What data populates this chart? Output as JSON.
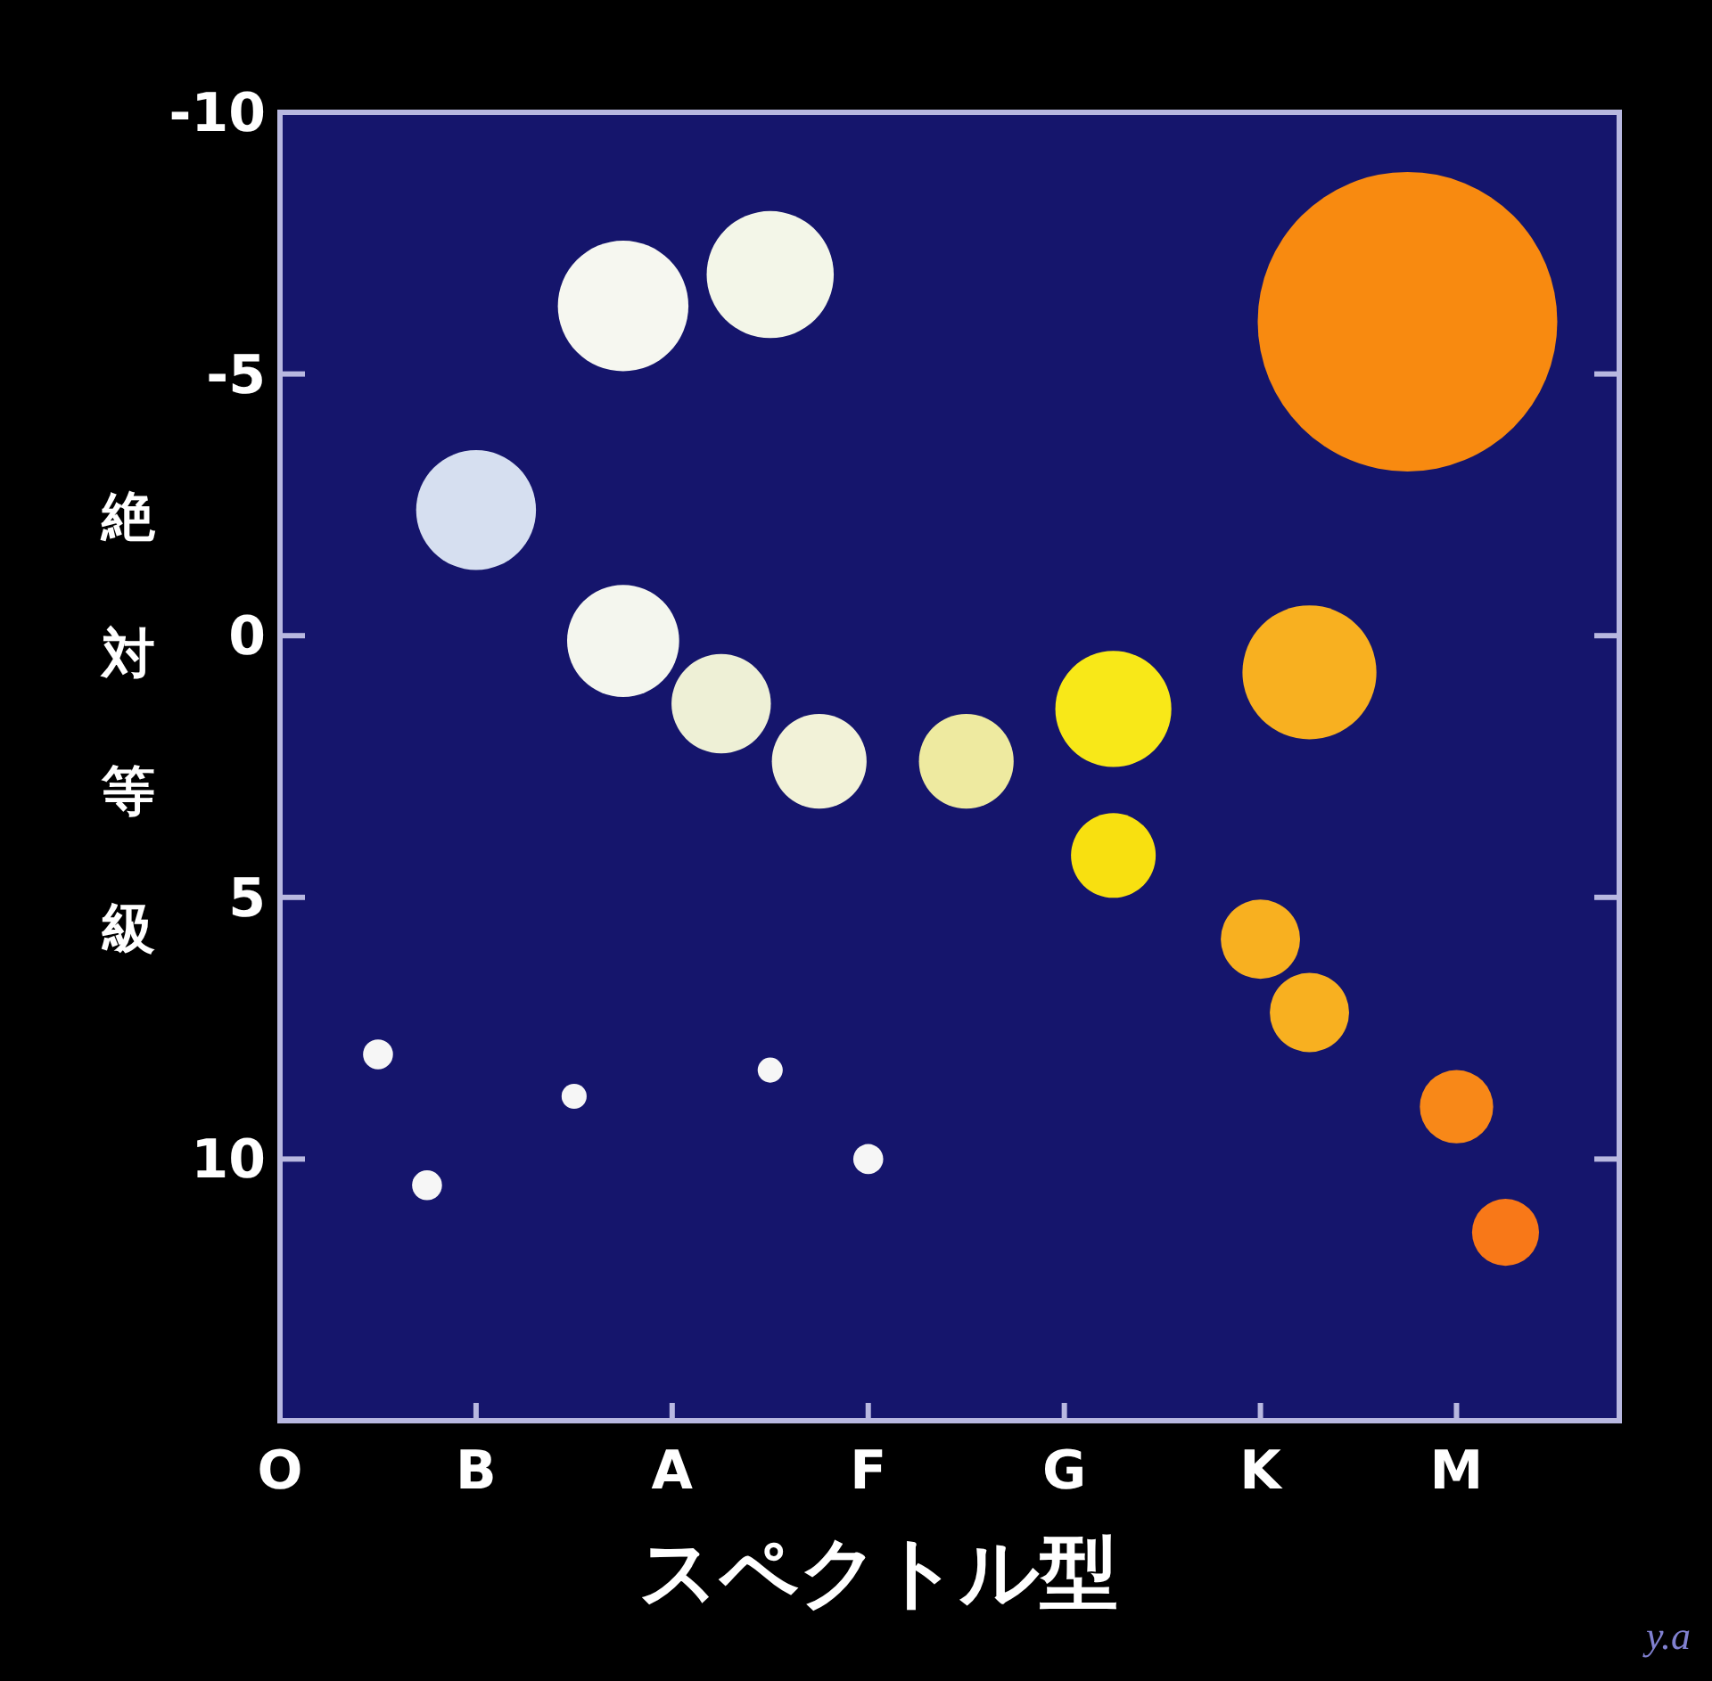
{
  "chart_data": {
    "type": "bubble",
    "xlabel": "スペクトル型",
    "ylabel": "絶対等級",
    "categories": [
      "O",
      null,
      null,
      null,
      "B",
      null,
      null,
      null,
      "A",
      null,
      null,
      null,
      "F",
      null,
      null,
      null,
      "G",
      null,
      null,
      null,
      "K",
      null,
      null,
      null,
      "M",
      null,
      null,
      null
    ],
    "ylim": [
      15,
      -10
    ],
    "yticks": [
      -10,
      -5,
      0,
      5,
      10
    ],
    "series": [
      {
        "values": [
          null,
          null,
          8.0,
          10.5,
          -2.4,
          null,
          8.8,
          -6.3,
          null,
          1.3,
          -6.9,
          2.4,
          10.0,
          null,
          2.4,
          null,
          null,
          1.4,
          null,
          null,
          5.8,
          0.7,
          null,
          -6.0,
          9.0,
          11.4,
          null,
          null
        ],
        "sizes": [
          null,
          null,
          0.01,
          0.01,
          0.16,
          null,
          0.007,
          0.19,
          null,
          0.11,
          0.18,
          0.1,
          0.01,
          null,
          0.1,
          null,
          null,
          0.15,
          null,
          null,
          0.07,
          0.2,
          null,
          1,
          0.06,
          0.05,
          null,
          null
        ],
        "colors": [
          null,
          null,
          "#f6f6f6",
          "#f6f6f6",
          "#d6dff0",
          null,
          "#f6f6f6",
          "#f6f7f0",
          null,
          "#eef0d6",
          "#f3f6e8",
          "#f2f2d8",
          "#f6f6f6",
          null,
          "#eeeaa0",
          null,
          null,
          "#f8e818",
          null,
          null,
          "#f8b020",
          "#f8b020",
          null,
          "#f88a10",
          "#f88818",
          "#f87818",
          null,
          null
        ]
      },
      {
        "values": [
          null,
          null,
          null,
          null,
          null,
          null,
          null,
          0.1,
          null,
          null,
          8.3,
          null,
          null,
          null,
          null,
          null,
          null,
          4.2,
          null,
          null,
          null,
          7.2,
          null,
          null,
          null,
          null,
          null,
          null
        ],
        "sizes": [
          null,
          null,
          null,
          null,
          null,
          null,
          null,
          0.14,
          null,
          null,
          0.007,
          null,
          null,
          null,
          null,
          null,
          null,
          0.08,
          null,
          null,
          null,
          0.07,
          null,
          null,
          null,
          null,
          null,
          null
        ],
        "colors": [
          null,
          null,
          null,
          null,
          null,
          null,
          null,
          "#f4f6ee",
          null,
          null,
          "#f6f6f6",
          null,
          null,
          null,
          null,
          null,
          null,
          "#f8e010",
          null,
          null,
          null,
          "#f8b020",
          null,
          null,
          null,
          null,
          null,
          null
        ]
      }
    ],
    "annotations": [
      "y.a"
    ]
  }
}
